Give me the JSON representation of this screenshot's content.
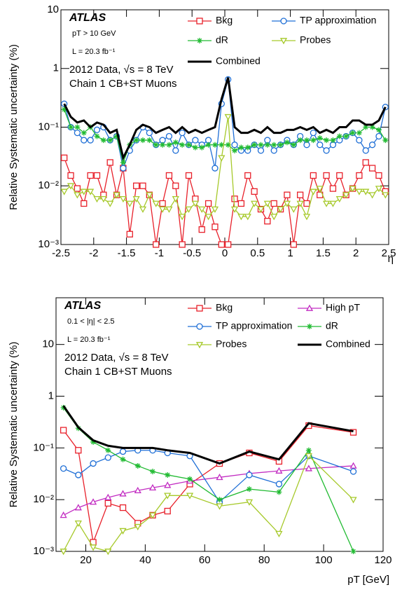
{
  "chart_data": [
    {
      "type": "line",
      "x_label": "η",
      "y_label": "Relative Systematic uncertainty (%)",
      "annotations": [
        "ATLAS",
        "pT > 10 GeV",
        "L = 20.3 fb⁻¹",
        "2012 Data, √s = 8 TeV",
        "Chain 1 CB+ST Muons"
      ],
      "log_y": true,
      "xlim": [
        -2.5,
        2.5
      ],
      "ylim": [
        0.001,
        10
      ],
      "xticks": [
        -2.5,
        -2,
        -1.5,
        -1,
        -0.5,
        0,
        0.5,
        1,
        1.5,
        2,
        2.5
      ],
      "yticks": [
        {
          "value": 0.001,
          "label": "10⁻³"
        },
        {
          "value": 0.01,
          "label": "10⁻²"
        },
        {
          "value": 0.1,
          "label": "10⁻¹"
        },
        {
          "value": 1,
          "label": "1"
        },
        {
          "value": 10,
          "label": "10"
        }
      ],
      "x": [
        -2.45,
        -2.35,
        -2.25,
        -2.15,
        -2.05,
        -1.95,
        -1.85,
        -1.75,
        -1.65,
        -1.55,
        -1.45,
        -1.35,
        -1.25,
        -1.15,
        -1.05,
        -0.95,
        -0.85,
        -0.75,
        -0.65,
        -0.55,
        -0.45,
        -0.35,
        -0.25,
        -0.15,
        -0.05,
        0.05,
        0.15,
        0.25,
        0.35,
        0.45,
        0.55,
        0.65,
        0.75,
        0.85,
        0.95,
        1.05,
        1.15,
        1.25,
        1.35,
        1.45,
        1.55,
        1.65,
        1.75,
        1.85,
        1.95,
        2.05,
        2.15,
        2.25,
        2.35,
        2.45
      ],
      "series": [
        {
          "name": "Bkg",
          "color": "#e8202a",
          "marker": "square",
          "values": [
            0.03,
            0.015,
            0.009,
            0.005,
            0.015,
            0.015,
            0.007,
            0.025,
            0.007,
            0.02,
            0.0015,
            0.01,
            0.01,
            0.007,
            0.001,
            0.005,
            0.015,
            0.01,
            0.001,
            0.015,
            0.006,
            0.0018,
            0.005,
            0.002,
            0.001,
            0.001,
            0.006,
            0.005,
            0.015,
            0.008,
            0.004,
            0.0025,
            0.005,
            0.004,
            0.007,
            0.001,
            0.007,
            0.005,
            0.015,
            0.007,
            0.015,
            0.009,
            0.015,
            0.007,
            0.009,
            0.015,
            0.025,
            0.02,
            0.015,
            0.008
          ]
        },
        {
          "name": "TP approximation",
          "color": "#1f6fd6",
          "marker": "circle",
          "values": [
            0.25,
            0.1,
            0.08,
            0.06,
            0.06,
            0.09,
            0.1,
            0.06,
            0.07,
            0.02,
            0.04,
            0.06,
            0.1,
            0.08,
            0.05,
            0.06,
            0.07,
            0.04,
            0.08,
            0.05,
            0.06,
            0.05,
            0.06,
            0.02,
            0.25,
            0.65,
            0.05,
            0.04,
            0.04,
            0.05,
            0.04,
            0.06,
            0.04,
            0.05,
            0.06,
            0.05,
            0.07,
            0.05,
            0.08,
            0.05,
            0.04,
            0.05,
            0.06,
            0.07,
            0.08,
            0.06,
            0.04,
            0.05,
            0.07,
            0.22
          ]
        },
        {
          "name": "dR",
          "color": "#22bb33",
          "marker": "star",
          "values": [
            0.2,
            0.1,
            0.1,
            0.08,
            0.1,
            0.07,
            0.06,
            0.06,
            0.07,
            0.025,
            0.05,
            0.06,
            0.06,
            0.06,
            0.05,
            0.05,
            0.05,
            0.055,
            0.05,
            0.05,
            0.045,
            0.045,
            0.05,
            0.05,
            0.05,
            0.05,
            0.04,
            0.045,
            0.045,
            0.05,
            0.05,
            0.05,
            0.05,
            0.05,
            0.055,
            0.05,
            0.06,
            0.06,
            0.06,
            0.065,
            0.06,
            0.06,
            0.07,
            0.07,
            0.08,
            0.08,
            0.1,
            0.1,
            0.09,
            0.06
          ]
        },
        {
          "name": "Probes",
          "color": "#a6c92a",
          "marker": "tri-down",
          "values": [
            0.008,
            0.01,
            0.007,
            0.008,
            0.008,
            0.006,
            0.006,
            0.005,
            0.007,
            0.006,
            0.005,
            0.006,
            0.004,
            0.007,
            0.005,
            0.004,
            0.004,
            0.006,
            0.003,
            0.004,
            0.005,
            0.004,
            0.003,
            0.004,
            0.03,
            0.15,
            0.004,
            0.003,
            0.003,
            0.005,
            0.004,
            0.005,
            0.003,
            0.004,
            0.005,
            0.004,
            0.005,
            0.003,
            0.008,
            0.009,
            0.005,
            0.005,
            0.006,
            0.007,
            0.009,
            0.008,
            0.008,
            0.007,
            0.009,
            0.007
          ]
        },
        {
          "name": "Combined",
          "color": "#000000",
          "marker": "none",
          "values": [
            0.25,
            0.15,
            0.12,
            0.13,
            0.1,
            0.12,
            0.11,
            0.08,
            0.09,
            0.03,
            0.05,
            0.09,
            0.11,
            0.1,
            0.08,
            0.09,
            0.1,
            0.08,
            0.1,
            0.08,
            0.09,
            0.08,
            0.09,
            0.1,
            0.3,
            0.7,
            0.1,
            0.08,
            0.08,
            0.09,
            0.08,
            0.1,
            0.08,
            0.08,
            0.09,
            0.09,
            0.1,
            0.09,
            0.1,
            0.08,
            0.09,
            0.08,
            0.1,
            0.1,
            0.13,
            0.13,
            0.11,
            0.11,
            0.13,
            0.22
          ]
        }
      ]
    },
    {
      "type": "line",
      "x_label": "pT [GeV]",
      "y_label": "Relative Systematic uncertainty (%)",
      "annotations": [
        "ATLAS",
        "0.1 < |η| < 2.5",
        "L = 20.3 fb⁻¹",
        "2012 Data, √s = 8 TeV",
        "Chain 1 CB+ST Muons"
      ],
      "log_y": true,
      "xlim": [
        10,
        120
      ],
      "ylim": [
        0.001,
        80
      ],
      "xticks": [
        20,
        40,
        60,
        80,
        100,
        120
      ],
      "yticks": [
        {
          "value": 0.001,
          "label": "10⁻³"
        },
        {
          "value": 0.01,
          "label": "10⁻²"
        },
        {
          "value": 0.1,
          "label": "10⁻¹"
        },
        {
          "value": 1,
          "label": "1"
        },
        {
          "value": 10,
          "label": "10"
        }
      ],
      "x": [
        12.5,
        17.5,
        22.5,
        27.5,
        32.5,
        37.5,
        42.5,
        47.5,
        55,
        65,
        75,
        85,
        95,
        110
      ],
      "series": [
        {
          "name": "Bkg",
          "color": "#e8202a",
          "marker": "square",
          "values": [
            0.22,
            0.09,
            0.0015,
            0.0085,
            0.007,
            0.0035,
            0.005,
            0.006,
            0.02,
            0.05,
            0.08,
            0.055,
            0.27,
            0.2
          ]
        },
        {
          "name": "High pT",
          "color": "#c22cc2",
          "marker": "tri-up",
          "values": [
            0.005,
            0.007,
            0.009,
            0.011,
            0.013,
            0.015,
            0.017,
            0.019,
            0.023,
            0.027,
            0.032,
            0.036,
            0.04,
            0.045
          ]
        },
        {
          "name": "TP approximation",
          "color": "#1f6fd6",
          "marker": "circle",
          "values": [
            0.04,
            0.03,
            0.05,
            0.065,
            0.085,
            0.09,
            0.09,
            0.08,
            0.07,
            0.009,
            0.03,
            0.02,
            0.07,
            0.035
          ]
        },
        {
          "name": "dR",
          "color": "#22bb33",
          "marker": "star",
          "values": [
            0.6,
            0.24,
            0.13,
            0.09,
            0.06,
            0.045,
            0.035,
            0.03,
            0.025,
            0.01,
            0.016,
            0.014,
            0.09,
            0.001
          ]
        },
        {
          "name": "Probes",
          "color": "#a6c92a",
          "marker": "tri-down",
          "values": [
            0.001,
            0.0035,
            0.0012,
            0.001,
            0.0025,
            0.003,
            0.005,
            0.012,
            0.012,
            0.0075,
            0.009,
            0.0022,
            0.07,
            0.01
          ]
        },
        {
          "name": "Combined",
          "color": "#000000",
          "marker": "none",
          "values": [
            0.65,
            0.25,
            0.14,
            0.11,
            0.1,
            0.1,
            0.1,
            0.09,
            0.08,
            0.05,
            0.085,
            0.06,
            0.3,
            0.21
          ]
        }
      ]
    }
  ]
}
